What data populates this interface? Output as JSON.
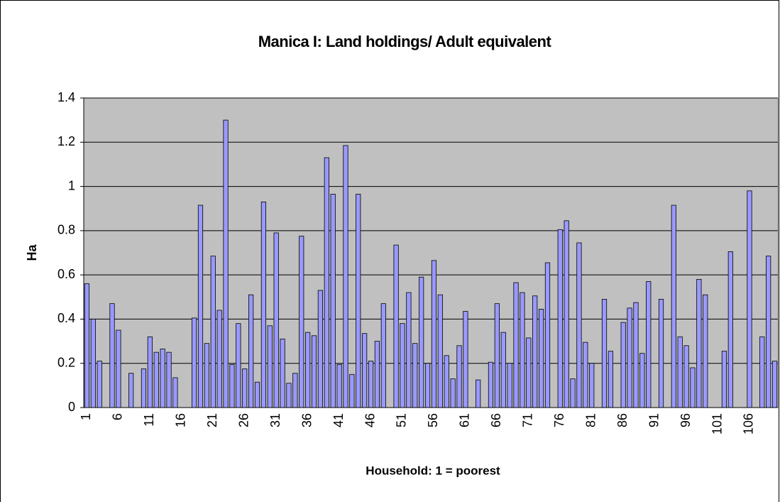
{
  "chart_data": {
    "type": "bar",
    "title": "Manica I: Land holdings/ Adult equivalent",
    "x_label": "Household: 1 = poorest",
    "y_label": "Ha",
    "categories": [
      "1",
      null,
      null,
      null,
      null,
      "6",
      null,
      null,
      null,
      null,
      "11",
      null,
      null,
      null,
      null,
      "16",
      null,
      null,
      null,
      null,
      "21",
      null,
      null,
      null,
      null,
      "26",
      null,
      null,
      null,
      null,
      "31",
      null,
      null,
      null,
      null,
      "36",
      null,
      null,
      null,
      null,
      "41",
      null,
      null,
      null,
      null,
      "46",
      null,
      null,
      null,
      null,
      "51",
      null,
      null,
      null,
      null,
      "56",
      null,
      null,
      null,
      null,
      "61",
      null,
      null,
      null,
      null,
      "66",
      null,
      null,
      null,
      null,
      "71",
      null,
      null,
      null,
      null,
      "76",
      null,
      null,
      null,
      null,
      "81",
      null,
      null,
      null,
      null,
      "86",
      null,
      null,
      null,
      null,
      "91",
      null,
      null,
      null,
      null,
      "96",
      null,
      null,
      null,
      null,
      "101",
      null,
      null,
      null,
      null,
      "106",
      null,
      null,
      null,
      null
    ],
    "values": [
      0.56,
      0.4,
      0.21,
      0,
      0.47,
      0.35,
      0,
      0.155,
      0,
      0.175,
      0.32,
      0.25,
      0.265,
      0.25,
      0.135,
      0,
      0,
      0.405,
      0.915,
      0.29,
      0.685,
      0.44,
      1.3,
      0.195,
      0.38,
      0.175,
      0.51,
      0.115,
      0.93,
      0.37,
      0.79,
      0.31,
      0.11,
      0.155,
      0.775,
      0.34,
      0.325,
      0.53,
      1.13,
      0.965,
      0.195,
      1.185,
      0.15,
      0.965,
      0.335,
      0.21,
      0.3,
      0.47,
      0,
      0.735,
      0.38,
      0.52,
      0.29,
      0.59,
      0.2,
      0.665,
      0.51,
      0.235,
      0.13,
      0.28,
      0.435,
      0,
      0.125,
      0,
      0.205,
      0.47,
      0.34,
      0.2,
      0.565,
      0.52,
      0.315,
      0.505,
      0.445,
      0.655,
      0,
      0.805,
      0.845,
      0.13,
      0.745,
      0.295,
      0.2,
      0,
      0.49,
      0.255,
      0,
      0.385,
      0.45,
      0.475,
      0.245,
      0.57,
      0,
      0.49,
      0,
      0.915,
      0.32,
      0.28,
      0.18,
      0.58,
      0.51,
      0,
      0,
      0.255,
      0.705,
      0,
      0,
      0.98,
      0,
      0.32,
      0.685,
      0.21
    ],
    "color": "#9999ff",
    "ylim": [
      0,
      1.4
    ],
    "yticks": [
      0,
      0.2,
      0.4,
      0.6,
      0.8,
      1,
      1.2,
      1.4
    ],
    "grid": true
  }
}
